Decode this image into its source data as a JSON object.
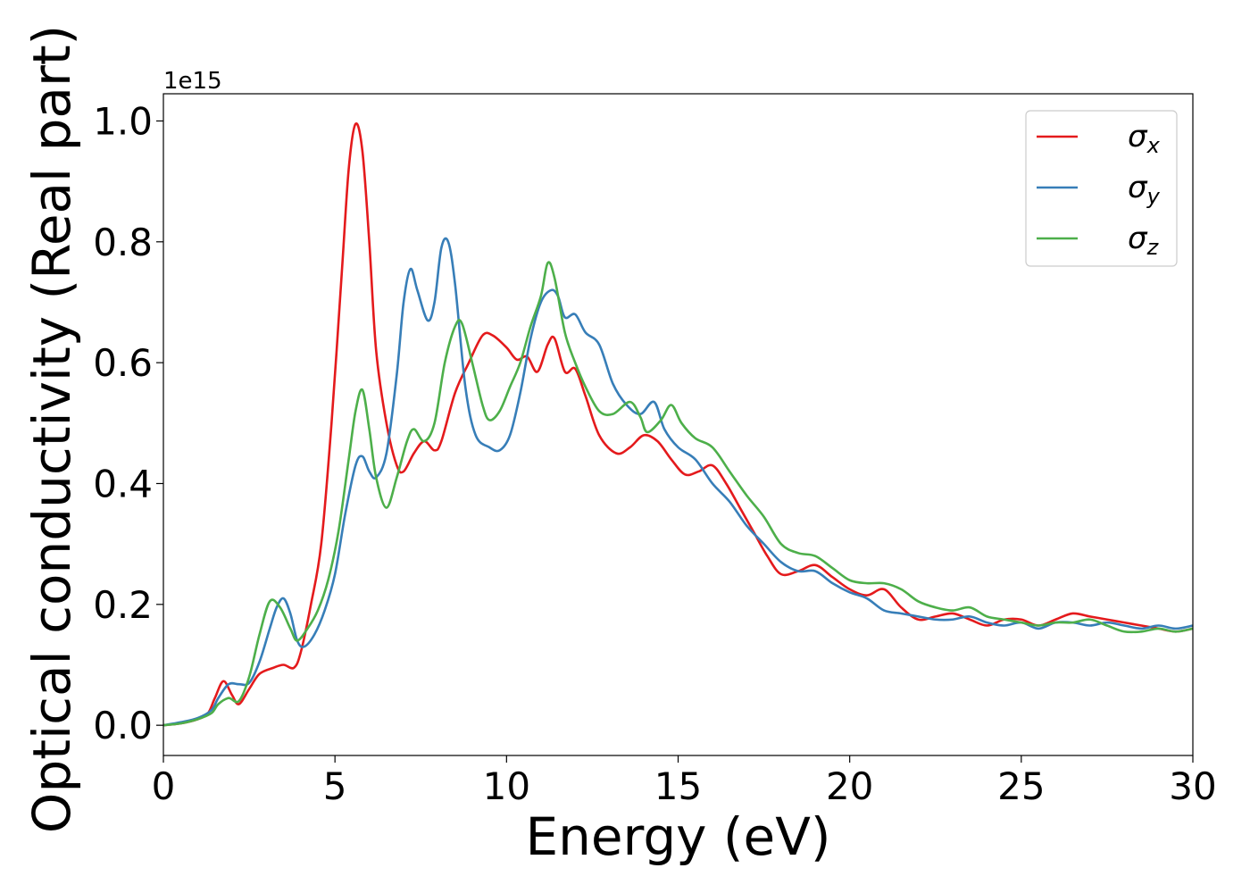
{
  "chart_data": {
    "type": "line",
    "title": "",
    "xlabel": "Energy (eV)",
    "ylabel": "Optical conductivity (Real part)",
    "y_offset_label": "1e15",
    "xlim": [
      0,
      30
    ],
    "ylim": [
      -0.05,
      1.045
    ],
    "x_ticks": [
      0,
      5,
      10,
      15,
      20,
      25,
      30
    ],
    "x_tick_labels": [
      "0",
      "5",
      "10",
      "15",
      "20",
      "25",
      "30"
    ],
    "y_ticks": [
      0.0,
      0.2,
      0.4,
      0.6,
      0.8,
      1.0
    ],
    "y_tick_labels": [
      "0.0",
      "0.2",
      "0.4",
      "0.6",
      "0.8",
      "1.0"
    ],
    "grid": false,
    "legend_position": "top-right",
    "series": [
      {
        "name": "σx",
        "symbol": "σ",
        "subscript": "x",
        "color": "#e41a1c",
        "points": [
          [
            0,
            0
          ],
          [
            0.5,
            0.003
          ],
          [
            1.0,
            0.01
          ],
          [
            1.3,
            0.02
          ],
          [
            1.5,
            0.045
          ],
          [
            1.75,
            0.073
          ],
          [
            2.0,
            0.05
          ],
          [
            2.2,
            0.035
          ],
          [
            2.5,
            0.06
          ],
          [
            2.8,
            0.085
          ],
          [
            3.2,
            0.095
          ],
          [
            3.5,
            0.1
          ],
          [
            3.8,
            0.095
          ],
          [
            4.0,
            0.12
          ],
          [
            4.3,
            0.2
          ],
          [
            4.6,
            0.3
          ],
          [
            4.9,
            0.5
          ],
          [
            5.2,
            0.75
          ],
          [
            5.4,
            0.92
          ],
          [
            5.6,
            0.995
          ],
          [
            5.8,
            0.95
          ],
          [
            6.0,
            0.8
          ],
          [
            6.2,
            0.62
          ],
          [
            6.5,
            0.5
          ],
          [
            6.8,
            0.43
          ],
          [
            7.0,
            0.42
          ],
          [
            7.3,
            0.45
          ],
          [
            7.6,
            0.47
          ],
          [
            7.9,
            0.455
          ],
          [
            8.1,
            0.47
          ],
          [
            8.5,
            0.55
          ],
          [
            8.9,
            0.6
          ],
          [
            9.3,
            0.645
          ],
          [
            9.6,
            0.645
          ],
          [
            10.0,
            0.625
          ],
          [
            10.3,
            0.605
          ],
          [
            10.6,
            0.61
          ],
          [
            10.9,
            0.585
          ],
          [
            11.2,
            0.63
          ],
          [
            11.4,
            0.64
          ],
          [
            11.7,
            0.585
          ],
          [
            12.0,
            0.59
          ],
          [
            12.3,
            0.545
          ],
          [
            12.7,
            0.48
          ],
          [
            13.2,
            0.45
          ],
          [
            13.6,
            0.46
          ],
          [
            14.0,
            0.48
          ],
          [
            14.4,
            0.47
          ],
          [
            14.8,
            0.44
          ],
          [
            15.2,
            0.415
          ],
          [
            15.6,
            0.42
          ],
          [
            16.0,
            0.43
          ],
          [
            16.4,
            0.4
          ],
          [
            16.8,
            0.36
          ],
          [
            17.2,
            0.32
          ],
          [
            17.6,
            0.28
          ],
          [
            18.0,
            0.25
          ],
          [
            18.5,
            0.255
          ],
          [
            19.0,
            0.265
          ],
          [
            19.5,
            0.245
          ],
          [
            20.0,
            0.225
          ],
          [
            20.5,
            0.215
          ],
          [
            21.0,
            0.225
          ],
          [
            21.5,
            0.195
          ],
          [
            22.0,
            0.175
          ],
          [
            22.5,
            0.18
          ],
          [
            23.0,
            0.185
          ],
          [
            23.5,
            0.175
          ],
          [
            24.0,
            0.165
          ],
          [
            24.5,
            0.175
          ],
          [
            25.0,
            0.175
          ],
          [
            25.5,
            0.165
          ],
          [
            26.0,
            0.175
          ],
          [
            26.5,
            0.185
          ],
          [
            27.0,
            0.18
          ],
          [
            27.5,
            0.175
          ],
          [
            28.0,
            0.17
          ],
          [
            28.5,
            0.165
          ],
          [
            29.0,
            0.16
          ],
          [
            29.5,
            0.155
          ],
          [
            30.0,
            0.16
          ]
        ]
      },
      {
        "name": "σy",
        "symbol": "σ",
        "subscript": "y",
        "color": "#377eb8",
        "points": [
          [
            0,
            0
          ],
          [
            0.5,
            0.005
          ],
          [
            1.0,
            0.012
          ],
          [
            1.4,
            0.025
          ],
          [
            1.6,
            0.045
          ],
          [
            1.9,
            0.068
          ],
          [
            2.2,
            0.068
          ],
          [
            2.5,
            0.07
          ],
          [
            2.8,
            0.105
          ],
          [
            3.1,
            0.16
          ],
          [
            3.3,
            0.195
          ],
          [
            3.5,
            0.21
          ],
          [
            3.7,
            0.185
          ],
          [
            3.9,
            0.14
          ],
          [
            4.1,
            0.13
          ],
          [
            4.4,
            0.15
          ],
          [
            4.7,
            0.19
          ],
          [
            5.0,
            0.25
          ],
          [
            5.3,
            0.35
          ],
          [
            5.6,
            0.43
          ],
          [
            5.8,
            0.445
          ],
          [
            6.0,
            0.42
          ],
          [
            6.2,
            0.41
          ],
          [
            6.5,
            0.45
          ],
          [
            6.8,
            0.58
          ],
          [
            7.0,
            0.7
          ],
          [
            7.2,
            0.755
          ],
          [
            7.4,
            0.72
          ],
          [
            7.7,
            0.67
          ],
          [
            7.9,
            0.7
          ],
          [
            8.1,
            0.79
          ],
          [
            8.3,
            0.8
          ],
          [
            8.5,
            0.73
          ],
          [
            8.8,
            0.56
          ],
          [
            9.1,
            0.48
          ],
          [
            9.5,
            0.46
          ],
          [
            9.8,
            0.455
          ],
          [
            10.1,
            0.48
          ],
          [
            10.4,
            0.55
          ],
          [
            10.7,
            0.64
          ],
          [
            11.0,
            0.7
          ],
          [
            11.3,
            0.72
          ],
          [
            11.5,
            0.71
          ],
          [
            11.7,
            0.675
          ],
          [
            12.0,
            0.68
          ],
          [
            12.3,
            0.65
          ],
          [
            12.7,
            0.63
          ],
          [
            13.1,
            0.565
          ],
          [
            13.5,
            0.53
          ],
          [
            13.9,
            0.515
          ],
          [
            14.3,
            0.535
          ],
          [
            14.6,
            0.49
          ],
          [
            15.0,
            0.46
          ],
          [
            15.5,
            0.44
          ],
          [
            16.0,
            0.4
          ],
          [
            16.5,
            0.37
          ],
          [
            17.0,
            0.33
          ],
          [
            17.5,
            0.3
          ],
          [
            18.0,
            0.27
          ],
          [
            18.5,
            0.255
          ],
          [
            19.0,
            0.255
          ],
          [
            19.5,
            0.235
          ],
          [
            20.0,
            0.22
          ],
          [
            20.5,
            0.21
          ],
          [
            21.0,
            0.19
          ],
          [
            21.5,
            0.185
          ],
          [
            22.0,
            0.18
          ],
          [
            22.5,
            0.175
          ],
          [
            23.0,
            0.175
          ],
          [
            23.5,
            0.18
          ],
          [
            24.0,
            0.17
          ],
          [
            24.5,
            0.165
          ],
          [
            25.0,
            0.17
          ],
          [
            25.5,
            0.16
          ],
          [
            26.0,
            0.17
          ],
          [
            26.5,
            0.17
          ],
          [
            27.0,
            0.165
          ],
          [
            27.5,
            0.17
          ],
          [
            28.0,
            0.165
          ],
          [
            28.5,
            0.16
          ],
          [
            29.0,
            0.165
          ],
          [
            29.5,
            0.16
          ],
          [
            30.0,
            0.165
          ]
        ]
      },
      {
        "name": "σz",
        "symbol": "σ",
        "subscript": "z",
        "color": "#4daf4a",
        "points": [
          [
            0,
            0
          ],
          [
            0.5,
            0.003
          ],
          [
            1.0,
            0.01
          ],
          [
            1.4,
            0.02
          ],
          [
            1.6,
            0.035
          ],
          [
            1.9,
            0.045
          ],
          [
            2.2,
            0.04
          ],
          [
            2.5,
            0.08
          ],
          [
            2.8,
            0.15
          ],
          [
            3.1,
            0.205
          ],
          [
            3.4,
            0.195
          ],
          [
            3.7,
            0.16
          ],
          [
            3.9,
            0.14
          ],
          [
            4.2,
            0.16
          ],
          [
            4.5,
            0.19
          ],
          [
            4.8,
            0.24
          ],
          [
            5.1,
            0.32
          ],
          [
            5.4,
            0.44
          ],
          [
            5.6,
            0.52
          ],
          [
            5.8,
            0.555
          ],
          [
            6.0,
            0.49
          ],
          [
            6.2,
            0.41
          ],
          [
            6.5,
            0.36
          ],
          [
            6.8,
            0.41
          ],
          [
            7.1,
            0.47
          ],
          [
            7.3,
            0.49
          ],
          [
            7.6,
            0.47
          ],
          [
            7.9,
            0.5
          ],
          [
            8.2,
            0.6
          ],
          [
            8.5,
            0.66
          ],
          [
            8.7,
            0.665
          ],
          [
            9.0,
            0.6
          ],
          [
            9.3,
            0.53
          ],
          [
            9.5,
            0.505
          ],
          [
            9.8,
            0.52
          ],
          [
            10.1,
            0.56
          ],
          [
            10.4,
            0.6
          ],
          [
            10.7,
            0.66
          ],
          [
            11.0,
            0.71
          ],
          [
            11.2,
            0.765
          ],
          [
            11.4,
            0.74
          ],
          [
            11.7,
            0.65
          ],
          [
            12.0,
            0.6
          ],
          [
            12.3,
            0.56
          ],
          [
            12.7,
            0.52
          ],
          [
            13.1,
            0.515
          ],
          [
            13.6,
            0.535
          ],
          [
            13.9,
            0.51
          ],
          [
            14.1,
            0.485
          ],
          [
            14.5,
            0.505
          ],
          [
            14.8,
            0.53
          ],
          [
            15.1,
            0.5
          ],
          [
            15.5,
            0.475
          ],
          [
            16.0,
            0.46
          ],
          [
            16.5,
            0.42
          ],
          [
            17.0,
            0.38
          ],
          [
            17.5,
            0.345
          ],
          [
            18.0,
            0.3
          ],
          [
            18.5,
            0.285
          ],
          [
            19.0,
            0.28
          ],
          [
            19.5,
            0.26
          ],
          [
            20.0,
            0.24
          ],
          [
            20.5,
            0.235
          ],
          [
            21.0,
            0.235
          ],
          [
            21.5,
            0.225
          ],
          [
            22.0,
            0.205
          ],
          [
            22.5,
            0.195
          ],
          [
            23.0,
            0.19
          ],
          [
            23.5,
            0.195
          ],
          [
            24.0,
            0.18
          ],
          [
            24.5,
            0.175
          ],
          [
            25.0,
            0.17
          ],
          [
            25.5,
            0.165
          ],
          [
            26.0,
            0.17
          ],
          [
            26.5,
            0.17
          ],
          [
            27.0,
            0.175
          ],
          [
            27.5,
            0.165
          ],
          [
            28.0,
            0.155
          ],
          [
            28.5,
            0.155
          ],
          [
            29.0,
            0.16
          ],
          [
            29.5,
            0.155
          ],
          [
            30.0,
            0.16
          ]
        ]
      }
    ]
  }
}
